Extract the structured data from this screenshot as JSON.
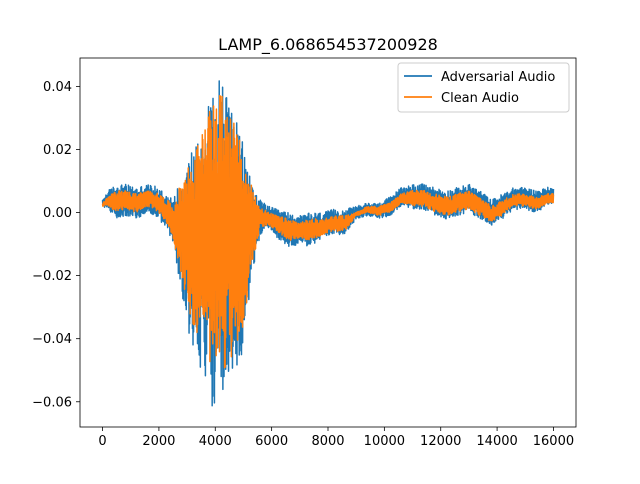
{
  "chart_data": {
    "type": "line",
    "title": "LAMP_6.068654537200928",
    "xlabel": "",
    "ylabel": "",
    "xlim": [
      -800,
      16800
    ],
    "ylim": [
      -0.068,
      0.049
    ],
    "xticks": [
      0,
      2000,
      4000,
      6000,
      8000,
      10000,
      12000,
      14000,
      16000
    ],
    "xtick_labels": [
      "0",
      "2000",
      "4000",
      "6000",
      "8000",
      "10000",
      "12000",
      "14000",
      "16000"
    ],
    "yticks": [
      -0.06,
      -0.04,
      -0.02,
      0.0,
      0.02,
      0.04
    ],
    "ytick_labels": [
      "−0.06",
      "−0.04",
      "−0.02",
      "0.00",
      "0.02",
      "0.04"
    ],
    "grid": false,
    "legend_position": "upper right",
    "envelope_x": [
      0,
      200,
      500,
      800,
      1200,
      1600,
      2000,
      2300,
      2500,
      2800,
      3100,
      3400,
      3700,
      3900,
      4100,
      4300,
      4500,
      4700,
      4900,
      5100,
      5300,
      5600,
      5900,
      6200,
      6600,
      7000,
      7400,
      7800,
      8200,
      8600,
      9000,
      9400,
      9800,
      10200,
      10600,
      11000,
      11400,
      11800,
      12200,
      12600,
      13000,
      13400,
      13800,
      14200,
      14600,
      15000,
      15400,
      15800,
      16000
    ],
    "series": [
      {
        "name": "Adversarial Audio",
        "color": "#1f77b4",
        "upper": [
          0.004,
          0.007,
          0.009,
          0.009,
          0.008,
          0.009,
          0.008,
          0.006,
          0.004,
          0.012,
          0.02,
          0.025,
          0.033,
          0.037,
          0.043,
          0.044,
          0.038,
          0.03,
          0.025,
          0.018,
          0.01,
          0.004,
          0.002,
          0.001,
          0.0,
          -0.001,
          0.0,
          0.0,
          0.001,
          0.001,
          0.002,
          0.003,
          0.003,
          0.005,
          0.008,
          0.009,
          0.009,
          0.008,
          0.007,
          0.008,
          0.009,
          0.007,
          0.004,
          0.006,
          0.008,
          0.008,
          0.007,
          0.008,
          0.008
        ],
        "lower": [
          0.002,
          0.001,
          -0.002,
          -0.001,
          -0.002,
          0.0,
          -0.002,
          -0.006,
          -0.01,
          -0.025,
          -0.04,
          -0.048,
          -0.055,
          -0.062,
          -0.063,
          -0.058,
          -0.056,
          -0.052,
          -0.048,
          -0.035,
          -0.02,
          -0.007,
          -0.005,
          -0.008,
          -0.011,
          -0.01,
          -0.011,
          -0.008,
          -0.007,
          -0.007,
          -0.002,
          -0.001,
          -0.002,
          -0.001,
          0.002,
          0.001,
          0.001,
          -0.001,
          -0.002,
          -0.001,
          0.0,
          -0.002,
          -0.004,
          -0.002,
          0.001,
          0.001,
          0.0,
          0.002,
          0.003
        ]
      },
      {
        "name": "Clean Audio",
        "color": "#ff7f0e",
        "upper": [
          0.003,
          0.005,
          0.007,
          0.007,
          0.006,
          0.007,
          0.006,
          0.004,
          0.002,
          0.01,
          0.017,
          0.022,
          0.03,
          0.034,
          0.038,
          0.038,
          0.035,
          0.028,
          0.022,
          0.015,
          0.008,
          0.002,
          0.0,
          -0.001,
          -0.002,
          -0.003,
          -0.002,
          -0.002,
          -0.001,
          -0.001,
          0.0,
          0.002,
          0.002,
          0.003,
          0.006,
          0.007,
          0.007,
          0.006,
          0.005,
          0.006,
          0.007,
          0.005,
          0.002,
          0.004,
          0.006,
          0.006,
          0.005,
          0.006,
          0.006
        ],
        "lower": [
          0.002,
          0.002,
          0.0,
          0.001,
          0.0,
          0.002,
          0.0,
          -0.004,
          -0.008,
          -0.02,
          -0.033,
          -0.04,
          -0.045,
          -0.05,
          -0.052,
          -0.05,
          -0.048,
          -0.045,
          -0.04,
          -0.03,
          -0.017,
          -0.005,
          -0.004,
          -0.006,
          -0.009,
          -0.008,
          -0.009,
          -0.007,
          -0.006,
          -0.006,
          -0.001,
          0.0,
          -0.001,
          0.0,
          0.003,
          0.002,
          0.002,
          0.0,
          -0.001,
          0.0,
          0.001,
          -0.001,
          -0.003,
          -0.001,
          0.002,
          0.002,
          0.001,
          0.003,
          0.003
        ]
      }
    ]
  }
}
